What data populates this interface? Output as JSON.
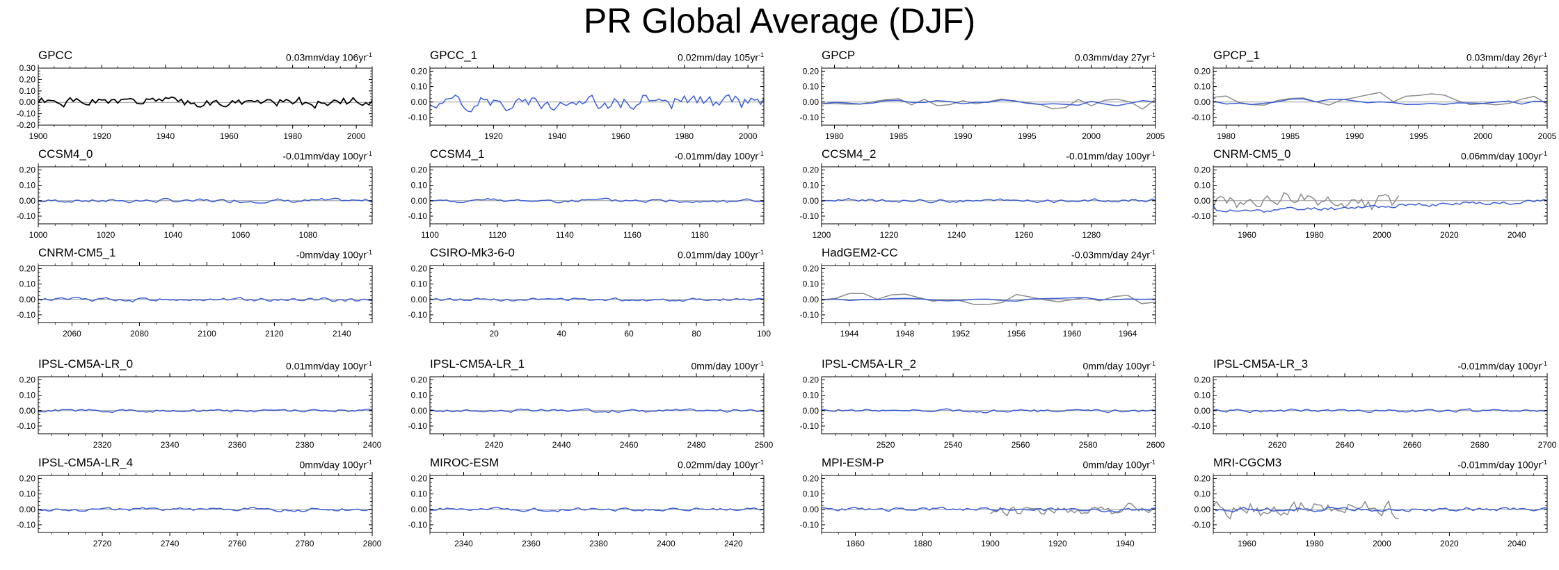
{
  "title": "PR Global Average (DJF)",
  "colors": {
    "observed": "#000000",
    "model": "#3b5fd6",
    "overlay": "#8c8c8c",
    "zero": "#9a9a9a"
  },
  "chart_data": [
    {
      "type": "line",
      "name": "GPCC",
      "trend": "0.03mm/day 106yr",
      "trend_exp": "-1",
      "xlim": [
        1900,
        2005
      ],
      "xticks": [
        1900,
        1920,
        1940,
        1960,
        1980,
        2000
      ],
      "ylim": [
        -0.2,
        0.3
      ],
      "yticks": [
        -0.2,
        -0.1,
        0.0,
        0.1,
        0.2,
        0.3
      ],
      "ytick_labels": [
        "-0.20",
        "-0.10",
        "0.00",
        "0.10",
        "0.20",
        "0.30"
      ],
      "series": [
        {
          "name": "GPCC",
          "color": "observed",
          "seed": 1,
          "amp": 0.06,
          "step": 1
        }
      ]
    },
    {
      "type": "line",
      "name": "GPCC_1",
      "trend": "0.02mm/day 105yr",
      "trend_exp": "-1",
      "xlim": [
        1900,
        2005
      ],
      "xticks": [
        1920,
        1940,
        1960,
        1980,
        2000
      ],
      "ylim": [
        -0.15,
        0.22
      ],
      "yticks": [
        -0.1,
        0.0,
        0.1,
        0.2
      ],
      "ytick_labels": [
        "-0.10",
        "0.00",
        "0.10",
        "0.20"
      ],
      "series": [
        {
          "name": "GPCC_1",
          "color": "model",
          "seed": 2,
          "amp": 0.07,
          "step": 1
        }
      ]
    },
    {
      "type": "line",
      "name": "GPCP",
      "trend": "0.03mm/day 27yr",
      "trend_exp": "-1",
      "xlim": [
        1979,
        2005
      ],
      "xticks": [
        1980,
        1985,
        1990,
        1995,
        2000,
        2005
      ],
      "ylim": [
        -0.15,
        0.22
      ],
      "yticks": [
        -0.1,
        0.0,
        0.1,
        0.2
      ],
      "ytick_labels": [
        "-0.10",
        "0.00",
        "0.10",
        "0.20"
      ],
      "series": [
        {
          "name": "GPCP obs",
          "color": "overlay",
          "seed": 3,
          "amp": 0.07,
          "step": 1
        },
        {
          "name": "GPCP model",
          "color": "model",
          "seed": 4,
          "amp": 0.03,
          "step": 1
        }
      ]
    },
    {
      "type": "line",
      "name": "GPCP_1",
      "trend": "0.03mm/day 26yr",
      "trend_exp": "-1",
      "xlim": [
        1979,
        2005
      ],
      "xticks": [
        1980,
        1985,
        1990,
        1995,
        2000,
        2005
      ],
      "ylim": [
        -0.15,
        0.22
      ],
      "yticks": [
        -0.1,
        0.0,
        0.1,
        0.2
      ],
      "ytick_labels": [
        "-0.10",
        "0.00",
        "0.10",
        "0.20"
      ],
      "series": [
        {
          "name": "GPCP_1 obs",
          "color": "overlay",
          "seed": 5,
          "amp": 0.07,
          "step": 1
        },
        {
          "name": "GPCP_1 model",
          "color": "model",
          "seed": 6,
          "amp": 0.03,
          "step": 1
        }
      ]
    },
    {
      "type": "line",
      "name": "CCSM4_0",
      "trend": "-0.01mm/day 100yr",
      "trend_exp": "-1",
      "xlim": [
        1000,
        1099
      ],
      "xticks": [
        1000,
        1020,
        1040,
        1060,
        1080
      ],
      "ylim": [
        -0.15,
        0.22
      ],
      "yticks": [
        -0.1,
        0.0,
        0.1,
        0.2
      ],
      "ytick_labels": [
        "-0.10",
        "0.00",
        "0.10",
        "0.20"
      ],
      "series": [
        {
          "name": "CCSM4_0",
          "color": "model",
          "seed": 7,
          "amp": 0.018,
          "step": 1
        }
      ]
    },
    {
      "type": "line",
      "name": "CCSM4_1",
      "trend": "-0.01mm/day 100yr",
      "trend_exp": "-1",
      "xlim": [
        1100,
        1199
      ],
      "xticks": [
        1100,
        1120,
        1140,
        1160,
        1180
      ],
      "ylim": [
        -0.15,
        0.22
      ],
      "yticks": [
        -0.1,
        0.0,
        0.1,
        0.2
      ],
      "ytick_labels": [
        "-0.10",
        "0.00",
        "0.10",
        "0.20"
      ],
      "series": [
        {
          "name": "CCSM4_1",
          "color": "model",
          "seed": 8,
          "amp": 0.018,
          "step": 1
        }
      ]
    },
    {
      "type": "line",
      "name": "CCSM4_2",
      "trend": "-0.01mm/day 100yr",
      "trend_exp": "-1",
      "xlim": [
        1200,
        1299
      ],
      "xticks": [
        1200,
        1220,
        1240,
        1260,
        1280
      ],
      "ylim": [
        -0.15,
        0.22
      ],
      "yticks": [
        -0.1,
        0.0,
        0.1,
        0.2
      ],
      "ytick_labels": [
        "-0.10",
        "0.00",
        "0.10",
        "0.20"
      ],
      "series": [
        {
          "name": "CCSM4_2",
          "color": "model",
          "seed": 9,
          "amp": 0.018,
          "step": 1
        }
      ]
    },
    {
      "type": "line",
      "name": "CNRM-CM5_0",
      "trend": "0.06mm/day 100yr",
      "trend_exp": "-1",
      "xlim": [
        1950,
        2049
      ],
      "xticks": [
        1960,
        1980,
        2000,
        2020,
        2040
      ],
      "ylim": [
        -0.15,
        0.22
      ],
      "yticks": [
        -0.1,
        0.0,
        0.1,
        0.2
      ],
      "ytick_labels": [
        "-0.10",
        "0.00",
        "0.10",
        "0.20"
      ],
      "series": [
        {
          "name": "CNRM-CM5_0 obs",
          "color": "overlay",
          "seed": 10,
          "amp": 0.08,
          "step": 1,
          "x_end": 2005
        },
        {
          "name": "CNRM-CM5_0 model",
          "color": "model",
          "seed": 11,
          "amp": 0.02,
          "step": 1,
          "drift": -0.04
        }
      ]
    },
    {
      "type": "line",
      "name": "CNRM-CM5_1",
      "trend": "-0mm/day 100yr",
      "trend_exp": "-1",
      "xlim": [
        2050,
        2149
      ],
      "xticks": [
        2060,
        2080,
        2100,
        2120,
        2140
      ],
      "ylim": [
        -0.15,
        0.22
      ],
      "yticks": [
        -0.1,
        0.0,
        0.1,
        0.2
      ],
      "ytick_labels": [
        "-0.10",
        "0.00",
        "0.10",
        "0.20"
      ],
      "series": [
        {
          "name": "CNRM-CM5_1",
          "color": "model",
          "seed": 12,
          "amp": 0.018,
          "step": 1
        }
      ]
    },
    {
      "type": "line",
      "name": "CSIRO-Mk3-6-0",
      "trend": "0.01mm/day 100yr",
      "trend_exp": "-1",
      "xlim": [
        1,
        100
      ],
      "xticks": [
        20,
        40,
        60,
        80,
        100
      ],
      "ylim": [
        -0.15,
        0.22
      ],
      "yticks": [
        -0.1,
        0.0,
        0.1,
        0.2
      ],
      "ytick_labels": [
        "-0.10",
        "0.00",
        "0.10",
        "0.20"
      ],
      "series": [
        {
          "name": "CSIRO-Mk3-6-0",
          "color": "model",
          "seed": 13,
          "amp": 0.015,
          "step": 1
        }
      ]
    },
    {
      "type": "line",
      "name": "HadGEM2-CC",
      "trend": "-0.03mm/day 24yr",
      "trend_exp": "-1",
      "xlim": [
        1942,
        1966
      ],
      "xticks": [
        1944,
        1948,
        1952,
        1956,
        1960,
        1964
      ],
      "ylim": [
        -0.15,
        0.22
      ],
      "yticks": [
        -0.1,
        0.0,
        0.1,
        0.2
      ],
      "ytick_labels": [
        "-0.10",
        "0.00",
        "0.10",
        "0.20"
      ],
      "series": [
        {
          "name": "HadGEM2-CC obs",
          "color": "overlay",
          "seed": 14,
          "amp": 0.06,
          "step": 1
        },
        {
          "name": "HadGEM2-CC model",
          "color": "model",
          "seed": 15,
          "amp": 0.015,
          "step": 1
        }
      ]
    },
    null,
    {
      "type": "line",
      "name": "IPSL-CM5A-LR_0",
      "trend": "0.01mm/day 100yr",
      "trend_exp": "-1",
      "xlim": [
        2301,
        2400
      ],
      "xticks": [
        2320,
        2340,
        2360,
        2380,
        2400
      ],
      "ylim": [
        -0.15,
        0.22
      ],
      "yticks": [
        -0.1,
        0.0,
        0.1,
        0.2
      ],
      "ytick_labels": [
        "-0.10",
        "0.00",
        "0.10",
        "0.20"
      ],
      "series": [
        {
          "name": "IPSL-CM5A-LR_0",
          "color": "model",
          "seed": 16,
          "amp": 0.015,
          "step": 1
        }
      ]
    },
    {
      "type": "line",
      "name": "IPSL-CM5A-LR_1",
      "trend": "0mm/day 100yr",
      "trend_exp": "-1",
      "xlim": [
        2401,
        2500
      ],
      "xticks": [
        2420,
        2440,
        2460,
        2480,
        2500
      ],
      "ylim": [
        -0.15,
        0.22
      ],
      "yticks": [
        -0.1,
        0.0,
        0.1,
        0.2
      ],
      "ytick_labels": [
        "-0.10",
        "0.00",
        "0.10",
        "0.20"
      ],
      "series": [
        {
          "name": "IPSL-CM5A-LR_1",
          "color": "model",
          "seed": 17,
          "amp": 0.015,
          "step": 1
        }
      ]
    },
    {
      "type": "line",
      "name": "IPSL-CM5A-LR_2",
      "trend": "0mm/day 100yr",
      "trend_exp": "-1",
      "xlim": [
        2501,
        2600
      ],
      "xticks": [
        2520,
        2540,
        2560,
        2580,
        2600
      ],
      "ylim": [
        -0.15,
        0.22
      ],
      "yticks": [
        -0.1,
        0.0,
        0.1,
        0.2
      ],
      "ytick_labels": [
        "-0.10",
        "0.00",
        "0.10",
        "0.20"
      ],
      "series": [
        {
          "name": "IPSL-CM5A-LR_2",
          "color": "model",
          "seed": 18,
          "amp": 0.015,
          "step": 1
        }
      ]
    },
    {
      "type": "line",
      "name": "IPSL-CM5A-LR_3",
      "trend": "-0.01mm/day 100yr",
      "trend_exp": "-1",
      "xlim": [
        2601,
        2700
      ],
      "xticks": [
        2620,
        2640,
        2660,
        2680,
        2700
      ],
      "ylim": [
        -0.15,
        0.22
      ],
      "yticks": [
        -0.1,
        0.0,
        0.1,
        0.2
      ],
      "ytick_labels": [
        "-0.10",
        "0.00",
        "0.10",
        "0.20"
      ],
      "series": [
        {
          "name": "IPSL-CM5A-LR_3",
          "color": "model",
          "seed": 19,
          "amp": 0.015,
          "step": 1
        }
      ]
    },
    {
      "type": "line",
      "name": "IPSL-CM5A-LR_4",
      "trend": "0mm/day 100yr",
      "trend_exp": "-1",
      "xlim": [
        2701,
        2800
      ],
      "xticks": [
        2720,
        2740,
        2760,
        2780,
        2800
      ],
      "ylim": [
        -0.15,
        0.22
      ],
      "yticks": [
        -0.1,
        0.0,
        0.1,
        0.2
      ],
      "ytick_labels": [
        "-0.10",
        "0.00",
        "0.10",
        "0.20"
      ],
      "series": [
        {
          "name": "IPSL-CM5A-LR_4",
          "color": "model",
          "seed": 20,
          "amp": 0.015,
          "step": 1
        }
      ]
    },
    {
      "type": "line",
      "name": "MIROC-ESM",
      "trend": "0.02mm/day 100yr",
      "trend_exp": "-1",
      "xlim": [
        2330,
        2429
      ],
      "xticks": [
        2340,
        2360,
        2380,
        2400,
        2420
      ],
      "ylim": [
        -0.15,
        0.22
      ],
      "yticks": [
        -0.1,
        0.0,
        0.1,
        0.2
      ],
      "ytick_labels": [
        "-0.10",
        "0.00",
        "0.10",
        "0.20"
      ],
      "series": [
        {
          "name": "MIROC-ESM",
          "color": "model",
          "seed": 21,
          "amp": 0.015,
          "step": 1
        }
      ]
    },
    {
      "type": "line",
      "name": "MPI-ESM-P",
      "trend": "0mm/day 100yr",
      "trend_exp": "-1",
      "xlim": [
        1850,
        1949
      ],
      "xticks": [
        1860,
        1880,
        1900,
        1920,
        1940
      ],
      "ylim": [
        -0.15,
        0.22
      ],
      "yticks": [
        -0.1,
        0.0,
        0.1,
        0.2
      ],
      "ytick_labels": [
        "-0.10",
        "0.00",
        "0.10",
        "0.20"
      ],
      "series": [
        {
          "name": "MPI-ESM-P obs",
          "color": "overlay",
          "seed": 22,
          "amp": 0.05,
          "step": 1,
          "x_start": 1900
        },
        {
          "name": "MPI-ESM-P model",
          "color": "model",
          "seed": 23,
          "amp": 0.018,
          "step": 1
        }
      ]
    },
    {
      "type": "line",
      "name": "MRI-CGCM3",
      "trend": "-0.01mm/day 100yr",
      "trend_exp": "-1",
      "xlim": [
        1950,
        2049
      ],
      "xticks": [
        1960,
        1980,
        2000,
        2020,
        2040
      ],
      "ylim": [
        -0.15,
        0.22
      ],
      "yticks": [
        -0.1,
        0.0,
        0.1,
        0.2
      ],
      "ytick_labels": [
        "-0.10",
        "0.00",
        "0.10",
        "0.20"
      ],
      "series": [
        {
          "name": "MRI-CGCM3 obs",
          "color": "overlay",
          "seed": 24,
          "amp": 0.08,
          "step": 1,
          "x_end": 2005
        },
        {
          "name": "MRI-CGCM3 model",
          "color": "model",
          "seed": 25,
          "amp": 0.02,
          "step": 1
        }
      ]
    }
  ]
}
